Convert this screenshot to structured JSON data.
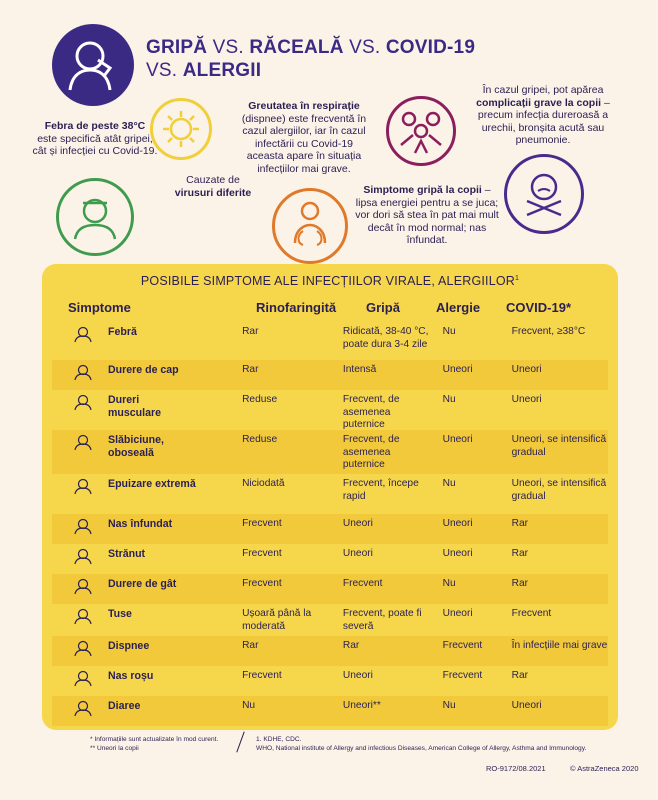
{
  "title": {
    "line1_a": "GRIPĂ",
    "vs1": " VS. ",
    "line1_b": "RĂCEALĂ",
    "vs2": " VS. ",
    "line1_c": "COVID-19",
    "vs3": "VS. ",
    "line2": "ALERGII"
  },
  "callouts": {
    "fever_bold": "Febra de peste 38°C",
    "fever_rest": "este specifică atât gripei, cât și infecției cu Covid-19.",
    "virus_pre": "Cauzate de",
    "virus_bold": "virusuri diferite",
    "breath_bold": "Greutatea în respirație",
    "breath_rest": "(dispnee) este frecventă în cazul alergiilor, iar în cazul infectării cu Covid-19 aceasta apare în situația infecțiilor mai grave.",
    "comp_pre": "În cazul gripei, pot apărea",
    "comp_bold": "complicații grave la copii",
    "comp_rest": "– precum infecția dureroasă a urechii, bronșita acută sau pneumonie.",
    "kids_bold": "Simptome gripă la copii",
    "kids_rest": "– lipsa energiei pentru a se juca; vor dori să stea în pat mai mult decât în mod normal; nas înfundat."
  },
  "table": {
    "title": "POSIBILE SIMPTOME ALE INFECȚIILOR VIRALE, ALERGIILOR",
    "title_sup": "1",
    "headers": [
      "Simptome",
      "Rinofaringită",
      "Gripă",
      "Alergie",
      "COVID-19*"
    ],
    "rows": [
      {
        "icon": "thermometer-icon",
        "symptom": "Febră",
        "c1": "Rar",
        "c2": "Ridicată, 38-40 °C, poate dura 3-4 zile",
        "c3": "Nu",
        "c4": "Frecvent, ≥38°C"
      },
      {
        "icon": "headache-icon",
        "symptom": "Durere de cap",
        "c1": "Rar",
        "c2": "Intensă",
        "c3": "Uneori",
        "c4": "Uneori"
      },
      {
        "icon": "muscle-pain-icon",
        "symptom": "Dureri musculare",
        "c1": "Reduse",
        "c2": "Frecvent, de asemenea puternice",
        "c3": "Nu",
        "c4": "Uneori"
      },
      {
        "icon": "fatigue-icon",
        "symptom": "Slăbiciune, oboseală",
        "c1": "Reduse",
        "c2": "Frecvent, de asemenea puternice",
        "c3": "Uneori",
        "c4": "Uneori, se intensifică gradual"
      },
      {
        "icon": "bed-icon",
        "symptom": "Epuizare extremă",
        "c1": "Niciodată",
        "c2": "Frecvent, începe rapid",
        "c3": "Nu",
        "c4": "Uneori, se intensifică gradual"
      },
      {
        "icon": "stuffy-nose-icon",
        "symptom": "Nas înfundat",
        "c1": "Frecvent",
        "c2": "Uneori",
        "c3": "Uneori",
        "c4": "Rar"
      },
      {
        "icon": "sneeze-icon",
        "symptom": "Strănut",
        "c1": "Frecvent",
        "c2": "Uneori",
        "c3": "Uneori",
        "c4": "Rar"
      },
      {
        "icon": "sore-throat-icon",
        "symptom": "Durere de gât",
        "c1": "Frecvent",
        "c2": "Frecvent",
        "c3": "Nu",
        "c4": "Rar"
      },
      {
        "icon": "cough-icon",
        "symptom": "Tuse",
        "c1": "Ușoară până la moderată",
        "c2": "Frecvent, poate fi severă",
        "c3": "Uneori",
        "c4": "Frecvent"
      },
      {
        "icon": "dyspnea-icon",
        "symptom": "Dispnee",
        "c1": "Rar",
        "c2": "Rar",
        "c3": "Frecvent",
        "c4": "În infecțiile mai grave"
      },
      {
        "icon": "red-nose-icon",
        "symptom": "Nas roșu",
        "c1": "Frecvent",
        "c2": "Uneori",
        "c3": "Frecvent",
        "c4": "Rar"
      },
      {
        "icon": "toilet-icon",
        "symptom": "Diaree",
        "c1": "Nu",
        "c2": "Uneori**",
        "c3": "Nu",
        "c4": "Uneori"
      }
    ]
  },
  "footnotes": {
    "note1": "* Informațiile sunt actualizate în mod curent.",
    "note2": "** Uneori la copii",
    "source1": "1. KDHE, CDC.",
    "source2": "WHO, National institute of Allergy and infectious Diseases, American College of Allergy, Asthma and Immunology."
  },
  "bottom": {
    "code": "RO-9172/08.2021",
    "copyright": "© AstraZeneca 2020"
  },
  "colors": {
    "purple": "#3b2a84",
    "yellow": "#f6d64a",
    "green": "#3f9b4e",
    "orange": "#e07a2a",
    "magenta": "#8b1f5e",
    "violet": "#4a2a8c"
  }
}
